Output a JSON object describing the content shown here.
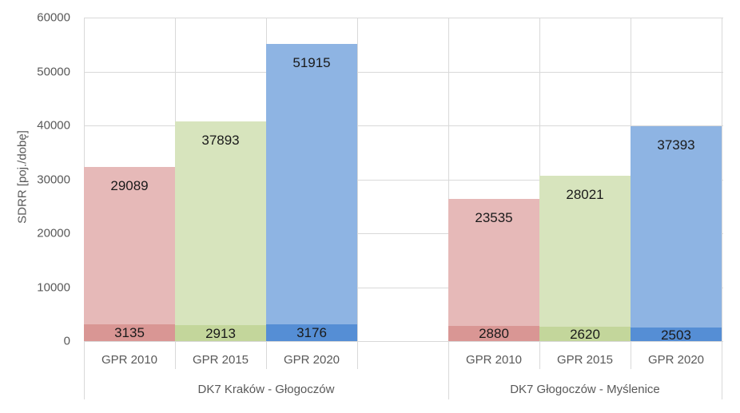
{
  "chart_data": {
    "type": "bar",
    "stacked": true,
    "title": "",
    "xlabel": "",
    "ylabel": "SDRR [poj./dobę]",
    "ylim": [
      0,
      60000
    ],
    "yticks": [
      "0",
      "10000",
      "20000",
      "30000",
      "40000",
      "50000",
      "60000"
    ],
    "grid": true,
    "legend": "none",
    "groups": [
      {
        "name": "DK7 Kraków - Głogoczów",
        "categories": [
          "GPR 2010",
          "GPR 2015",
          "GPR 2020"
        ]
      },
      {
        "name": "DK7 Głogoczów - Myślenice",
        "categories": [
          "GPR 2010",
          "GPR 2015",
          "GPR 2020"
        ]
      }
    ],
    "categories": [
      "GPR 2010",
      "GPR 2015",
      "GPR 2020",
      "",
      "GPR 2010",
      "GPR 2015",
      "GPR 2020"
    ],
    "series": [
      {
        "name": "lower segment",
        "values": [
          3135,
          2913,
          3176,
          null,
          2880,
          2620,
          2503
        ]
      },
      {
        "name": "upper segment",
        "values": [
          29089,
          37893,
          51915,
          null,
          23535,
          28021,
          37393
        ]
      }
    ],
    "colors": {
      "GPR 2010": {
        "lower": "#d99694",
        "upper": "#e6b9b8"
      },
      "GPR 2015": {
        "lower": "#c3d69b",
        "upper": "#d7e4bd"
      },
      "GPR 2020": {
        "lower": "#558ed5",
        "upper": "#8eb4e3"
      }
    }
  },
  "axis": {
    "ylabel": "SDRR [poj./dobę]",
    "yticks": [
      "0",
      "10000",
      "20000",
      "30000",
      "40000",
      "50000",
      "60000"
    ]
  },
  "bars": [
    {
      "cat": "GPR 2010",
      "lower": "3135",
      "upper": "29089"
    },
    {
      "cat": "GPR 2015",
      "lower": "2913",
      "upper": "37893"
    },
    {
      "cat": "GPR 2020",
      "lower": "3176",
      "upper": "51915"
    },
    {
      "cat": "GPR 2010",
      "lower": "2880",
      "upper": "23535"
    },
    {
      "cat": "GPR 2015",
      "lower": "2620",
      "upper": "28021"
    },
    {
      "cat": "GPR 2020",
      "lower": "2503",
      "upper": "37393"
    }
  ],
  "groups": [
    {
      "name": "DK7 Kraków - Głogoczów"
    },
    {
      "name": "DK7 Głogoczów - Myślenice"
    }
  ]
}
